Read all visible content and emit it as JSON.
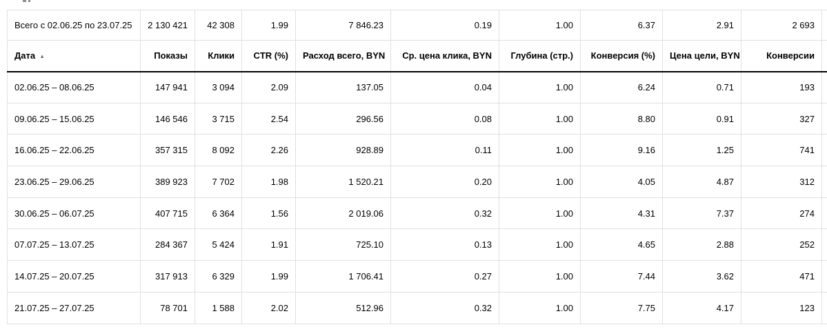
{
  "table": {
    "summary_row": {
      "label": "Всего с 02.06.25 по 23.07.25",
      "values": [
        "2 130 421",
        "42 308",
        "1.99",
        "7 846.23",
        "0.19",
        "1.00",
        "6.37",
        "2.91",
        "2 693"
      ]
    },
    "columns": [
      {
        "id": "date",
        "label": "Дата",
        "sorted": "ascending"
      },
      {
        "id": "impressions",
        "label": "Показы"
      },
      {
        "id": "clicks",
        "label": "Клики"
      },
      {
        "id": "ctr",
        "label": "CTR (%)"
      },
      {
        "id": "total-cost",
        "label": "Расход всего, BYN"
      },
      {
        "id": "avg-cpc",
        "label": "Ср. цена клика, BYN"
      },
      {
        "id": "depth",
        "label": "Глубина (стр.)"
      },
      {
        "id": "conversion-rate",
        "label": "Конверсия (%)"
      },
      {
        "id": "goal-cost",
        "label": "Цена цели, BYN"
      },
      {
        "id": "conversions",
        "label": "Конверсии"
      }
    ],
    "rows": [
      {
        "date": "02.06.25 – 08.06.25",
        "values": [
          "147 941",
          "3 094",
          "2.09",
          "137.05",
          "0.04",
          "1.00",
          "6.24",
          "0.71",
          "193"
        ]
      },
      {
        "date": "09.06.25 – 15.06.25",
        "values": [
          "146 546",
          "3 715",
          "2.54",
          "296.56",
          "0.08",
          "1.00",
          "8.80",
          "0.91",
          "327"
        ]
      },
      {
        "date": "16.06.25 – 22.06.25",
        "values": [
          "357 315",
          "8 092",
          "2.26",
          "928.89",
          "0.11",
          "1.00",
          "9.16",
          "1.25",
          "741"
        ]
      },
      {
        "date": "23.06.25 – 29.06.25",
        "values": [
          "389 923",
          "7 702",
          "1.98",
          "1 520.21",
          "0.20",
          "1.00",
          "4.05",
          "4.87",
          "312"
        ]
      },
      {
        "date": "30.06.25 – 06.07.25",
        "values": [
          "407 715",
          "6 364",
          "1.56",
          "2 019.06",
          "0.32",
          "1.00",
          "4.31",
          "7.37",
          "274"
        ]
      },
      {
        "date": "07.07.25 – 13.07.25",
        "values": [
          "284 367",
          "5 424",
          "1.91",
          "725.10",
          "0.13",
          "1.00",
          "4.65",
          "2.88",
          "252"
        ]
      },
      {
        "date": "14.07.25 – 20.07.25",
        "values": [
          "317 913",
          "6 329",
          "1.99",
          "1 706.41",
          "0.27",
          "1.00",
          "7.44",
          "3.62",
          "471"
        ]
      },
      {
        "date": "21.07.25 – 27.07.25",
        "values": [
          "78 701",
          "1 588",
          "2.02",
          "512.96",
          "0.32",
          "1.00",
          "7.75",
          "4.17",
          "123"
        ]
      }
    ]
  },
  "icons": {
    "sort_ascending": "▲"
  }
}
